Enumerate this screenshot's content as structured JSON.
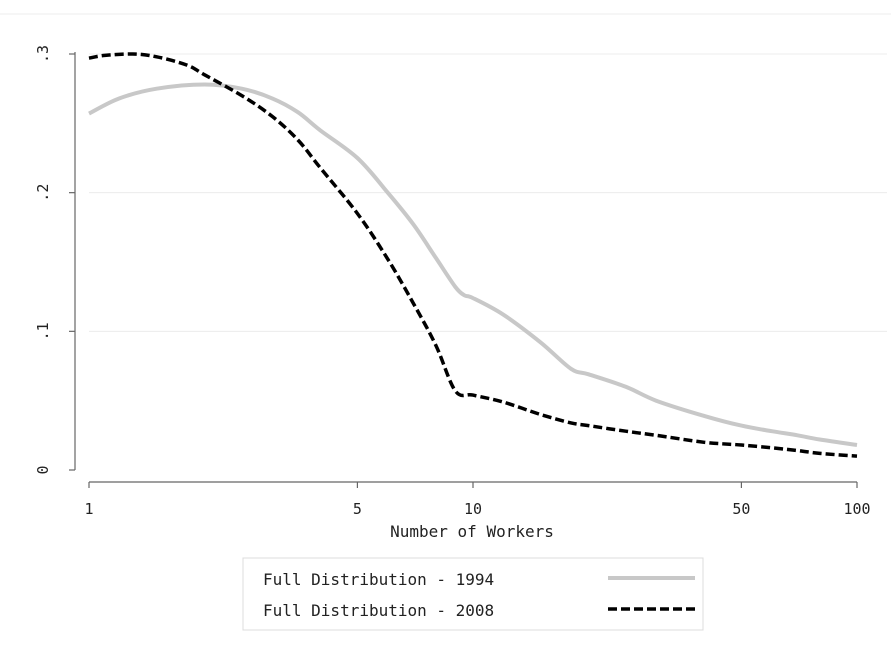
{
  "chart_data": {
    "type": "line",
    "title": "",
    "xlabel": "Number of Workers",
    "ylabel": "",
    "x_scale": "log",
    "xlim": [
      1,
      100
    ],
    "ylim": [
      0,
      0.3
    ],
    "x_ticks": [
      {
        "value": 1,
        "label": "1"
      },
      {
        "value": 5,
        "label": "5"
      },
      {
        "value": 10,
        "label": "10"
      },
      {
        "value": 50,
        "label": "50"
      },
      {
        "value": 100,
        "label": "100"
      }
    ],
    "y_ticks": [
      {
        "value": 0,
        "label": "0"
      },
      {
        "value": 0.1,
        "label": ".1"
      },
      {
        "value": 0.2,
        "label": ".2"
      },
      {
        "value": 0.3,
        "label": ".3"
      }
    ],
    "grid": {
      "horizontal": true,
      "vertical": false
    },
    "legend_position": "bottom",
    "series": [
      {
        "name": "Full Distribution - 1994",
        "color": "#c8c8c8",
        "line_style": "solid",
        "points": [
          [
            1,
            0.257
          ],
          [
            1.2,
            0.268
          ],
          [
            1.5,
            0.275
          ],
          [
            2,
            0.278
          ],
          [
            2.5,
            0.275
          ],
          [
            3,
            0.268
          ],
          [
            3.5,
            0.258
          ],
          [
            4,
            0.245
          ],
          [
            5,
            0.225
          ],
          [
            6,
            0.2
          ],
          [
            7,
            0.177
          ],
          [
            8,
            0.153
          ],
          [
            9,
            0.132
          ],
          [
            9.5,
            0.126
          ],
          [
            10,
            0.124
          ],
          [
            12,
            0.112
          ],
          [
            15,
            0.092
          ],
          [
            18,
            0.073
          ],
          [
            20,
            0.069
          ],
          [
            25,
            0.06
          ],
          [
            30,
            0.05
          ],
          [
            40,
            0.039
          ],
          [
            50,
            0.032
          ],
          [
            60,
            0.028
          ],
          [
            70,
            0.025
          ],
          [
            80,
            0.022
          ],
          [
            100,
            0.018
          ]
        ]
      },
      {
        "name": "Full Distribution - 2008",
        "color": "#000000",
        "line_style": "dashed",
        "points": [
          [
            1,
            0.297
          ],
          [
            1.1,
            0.299
          ],
          [
            1.3,
            0.3
          ],
          [
            1.5,
            0.298
          ],
          [
            1.8,
            0.292
          ],
          [
            2,
            0.285
          ],
          [
            2.5,
            0.27
          ],
          [
            3,
            0.255
          ],
          [
            3.5,
            0.238
          ],
          [
            4,
            0.218
          ],
          [
            5,
            0.185
          ],
          [
            6,
            0.152
          ],
          [
            7,
            0.12
          ],
          [
            8,
            0.09
          ],
          [
            9,
            0.057
          ],
          [
            10,
            0.054
          ],
          [
            12,
            0.049
          ],
          [
            15,
            0.04
          ],
          [
            18,
            0.034
          ],
          [
            20,
            0.032
          ],
          [
            25,
            0.028
          ],
          [
            30,
            0.025
          ],
          [
            40,
            0.02
          ],
          [
            50,
            0.018
          ],
          [
            60,
            0.016
          ],
          [
            70,
            0.014
          ],
          [
            80,
            0.012
          ],
          [
            100,
            0.01
          ]
        ]
      }
    ]
  }
}
